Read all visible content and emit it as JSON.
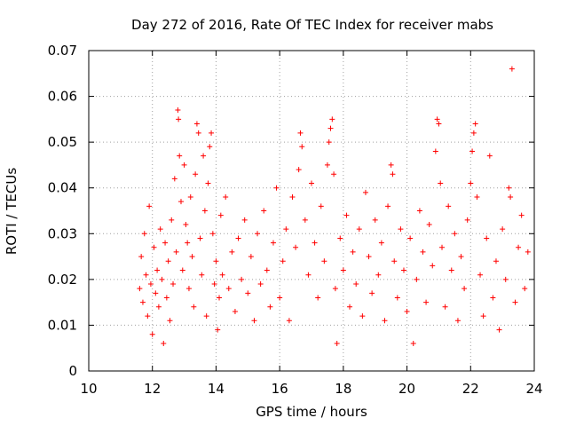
{
  "chart_data": {
    "type": "scatter",
    "title": "Day 272 of 2016, Rate Of TEC Index for receiver mabs",
    "xlabel": "GPS time / hours",
    "ylabel": "ROTI / TECUs",
    "xlim": [
      10,
      24
    ],
    "ylim": [
      0,
      0.07
    ],
    "xticks": [
      "10",
      "12",
      "14",
      "16",
      "18",
      "20",
      "22",
      "24"
    ],
    "yticks": [
      "0",
      "0.01",
      "0.02",
      "0.03",
      "0.04",
      "0.05",
      "0.06",
      "0.07"
    ],
    "grid": true,
    "marker": "plus",
    "color": "#ff0000",
    "series": [
      {
        "name": "ROTI",
        "points": [
          [
            11.6,
            0.018
          ],
          [
            11.65,
            0.025
          ],
          [
            11.7,
            0.015
          ],
          [
            11.75,
            0.03
          ],
          [
            11.8,
            0.021
          ],
          [
            11.85,
            0.012
          ],
          [
            11.9,
            0.036
          ],
          [
            11.95,
            0.019
          ],
          [
            12.0,
            0.008
          ],
          [
            12.05,
            0.027
          ],
          [
            12.1,
            0.017
          ],
          [
            12.15,
            0.022
          ],
          [
            12.2,
            0.014
          ],
          [
            12.25,
            0.031
          ],
          [
            12.3,
            0.02
          ],
          [
            12.35,
            0.006
          ],
          [
            12.4,
            0.028
          ],
          [
            12.45,
            0.016
          ],
          [
            12.5,
            0.024
          ],
          [
            12.55,
            0.011
          ],
          [
            12.6,
            0.033
          ],
          [
            12.65,
            0.019
          ],
          [
            12.7,
            0.042
          ],
          [
            12.75,
            0.026
          ],
          [
            12.8,
            0.057
          ],
          [
            12.82,
            0.055
          ],
          [
            12.85,
            0.047
          ],
          [
            12.9,
            0.037
          ],
          [
            12.95,
            0.022
          ],
          [
            13.0,
            0.045
          ],
          [
            13.05,
            0.032
          ],
          [
            13.1,
            0.028
          ],
          [
            13.15,
            0.018
          ],
          [
            13.2,
            0.038
          ],
          [
            13.25,
            0.025
          ],
          [
            13.3,
            0.014
          ],
          [
            13.35,
            0.043
          ],
          [
            13.4,
            0.054
          ],
          [
            13.45,
            0.052
          ],
          [
            13.5,
            0.029
          ],
          [
            13.55,
            0.021
          ],
          [
            13.6,
            0.047
          ],
          [
            13.65,
            0.035
          ],
          [
            13.7,
            0.012
          ],
          [
            13.75,
            0.041
          ],
          [
            13.8,
            0.049
          ],
          [
            13.85,
            0.052
          ],
          [
            13.9,
            0.03
          ],
          [
            13.95,
            0.019
          ],
          [
            14.0,
            0.024
          ],
          [
            14.05,
            0.009
          ],
          [
            14.1,
            0.016
          ],
          [
            14.15,
            0.034
          ],
          [
            14.2,
            0.021
          ],
          [
            14.3,
            0.038
          ],
          [
            14.4,
            0.018
          ],
          [
            14.5,
            0.026
          ],
          [
            14.6,
            0.013
          ],
          [
            14.7,
            0.029
          ],
          [
            14.8,
            0.02
          ],
          [
            14.9,
            0.033
          ],
          [
            15.0,
            0.017
          ],
          [
            15.1,
            0.025
          ],
          [
            15.2,
            0.011
          ],
          [
            15.3,
            0.03
          ],
          [
            15.4,
            0.019
          ],
          [
            15.5,
            0.035
          ],
          [
            15.6,
            0.022
          ],
          [
            15.7,
            0.014
          ],
          [
            15.8,
            0.028
          ],
          [
            15.9,
            0.04
          ],
          [
            16.0,
            0.016
          ],
          [
            16.1,
            0.024
          ],
          [
            16.2,
            0.031
          ],
          [
            16.3,
            0.011
          ],
          [
            16.4,
            0.038
          ],
          [
            16.5,
            0.027
          ],
          [
            16.6,
            0.044
          ],
          [
            16.65,
            0.052
          ],
          [
            16.7,
            0.049
          ],
          [
            16.8,
            0.033
          ],
          [
            16.9,
            0.021
          ],
          [
            17.0,
            0.041
          ],
          [
            17.1,
            0.028
          ],
          [
            17.2,
            0.016
          ],
          [
            17.3,
            0.036
          ],
          [
            17.4,
            0.024
          ],
          [
            17.5,
            0.045
          ],
          [
            17.55,
            0.05
          ],
          [
            17.6,
            0.053
          ],
          [
            17.65,
            0.055
          ],
          [
            17.7,
            0.043
          ],
          [
            17.75,
            0.018
          ],
          [
            17.8,
            0.006
          ],
          [
            17.9,
            0.029
          ],
          [
            18.0,
            0.022
          ],
          [
            18.1,
            0.034
          ],
          [
            18.2,
            0.014
          ],
          [
            18.3,
            0.026
          ],
          [
            18.4,
            0.019
          ],
          [
            18.5,
            0.031
          ],
          [
            18.6,
            0.012
          ],
          [
            18.7,
            0.039
          ],
          [
            18.8,
            0.025
          ],
          [
            18.9,
            0.017
          ],
          [
            19.0,
            0.033
          ],
          [
            19.1,
            0.021
          ],
          [
            19.2,
            0.028
          ],
          [
            19.3,
            0.011
          ],
          [
            19.4,
            0.036
          ],
          [
            19.5,
            0.045
          ],
          [
            19.55,
            0.043
          ],
          [
            19.6,
            0.024
          ],
          [
            19.7,
            0.016
          ],
          [
            19.8,
            0.031
          ],
          [
            19.9,
            0.022
          ],
          [
            20.0,
            0.013
          ],
          [
            20.1,
            0.029
          ],
          [
            20.2,
            0.006
          ],
          [
            20.3,
            0.02
          ],
          [
            20.4,
            0.035
          ],
          [
            20.5,
            0.026
          ],
          [
            20.6,
            0.015
          ],
          [
            20.7,
            0.032
          ],
          [
            20.8,
            0.023
          ],
          [
            20.9,
            0.048
          ],
          [
            20.95,
            0.055
          ],
          [
            21.0,
            0.054
          ],
          [
            21.05,
            0.041
          ],
          [
            21.1,
            0.027
          ],
          [
            21.2,
            0.014
          ],
          [
            21.3,
            0.036
          ],
          [
            21.4,
            0.022
          ],
          [
            21.5,
            0.03
          ],
          [
            21.6,
            0.011
          ],
          [
            21.7,
            0.025
          ],
          [
            21.8,
            0.018
          ],
          [
            21.9,
            0.033
          ],
          [
            22.0,
            0.041
          ],
          [
            22.05,
            0.048
          ],
          [
            22.1,
            0.052
          ],
          [
            22.15,
            0.054
          ],
          [
            22.2,
            0.038
          ],
          [
            22.3,
            0.021
          ],
          [
            22.4,
            0.012
          ],
          [
            22.5,
            0.029
          ],
          [
            22.6,
            0.047
          ],
          [
            22.7,
            0.016
          ],
          [
            22.8,
            0.024
          ],
          [
            22.9,
            0.009
          ],
          [
            23.0,
            0.031
          ],
          [
            23.1,
            0.02
          ],
          [
            23.2,
            0.04
          ],
          [
            23.25,
            0.038
          ],
          [
            23.3,
            0.066
          ],
          [
            23.4,
            0.015
          ],
          [
            23.5,
            0.027
          ],
          [
            23.6,
            0.034
          ],
          [
            23.7,
            0.018
          ],
          [
            23.8,
            0.026
          ]
        ]
      }
    ]
  }
}
